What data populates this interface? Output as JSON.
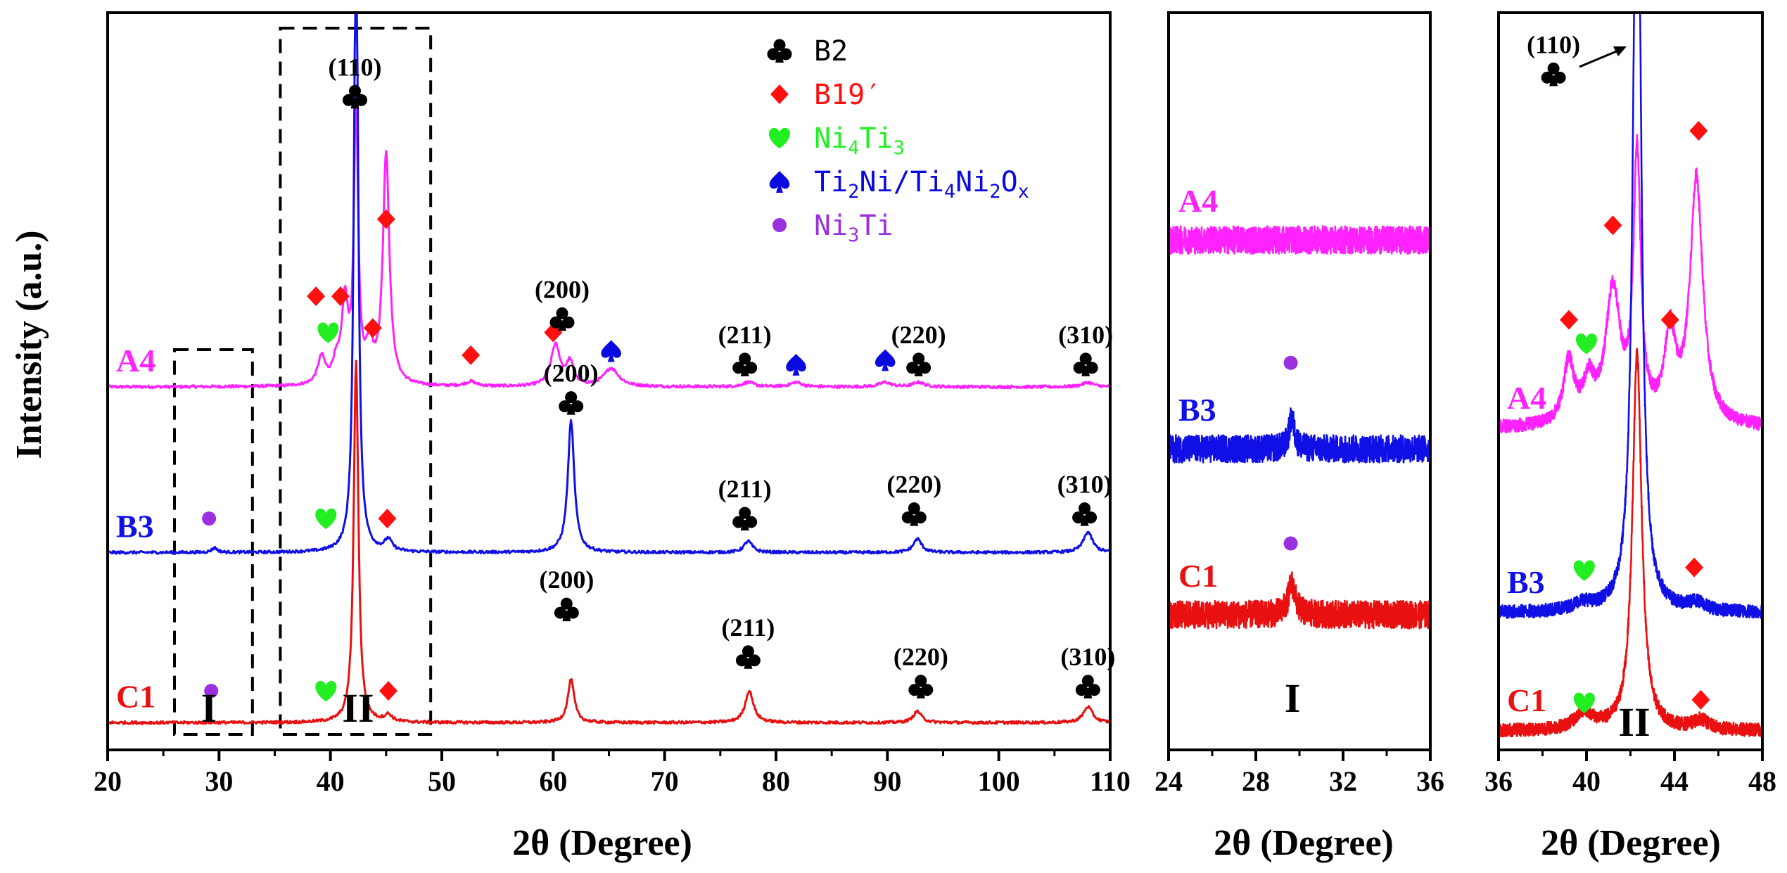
{
  "colors": {
    "A4": "#ff22ff",
    "B3": "#1010e6",
    "C1": "#e81010",
    "B2": "#000000",
    "B19p": "#ff1010",
    "Ni4Ti3": "#22ee22",
    "Ti2Ni": "#0a0ae0",
    "Ni3Ti": "#9a30e0"
  },
  "legend": [
    {
      "key": "B2",
      "symbol": "club",
      "label": "B2"
    },
    {
      "key": "B19p",
      "symbol": "diamond",
      "label": "B19′"
    },
    {
      "key": "Ni4Ti3",
      "symbol": "heart",
      "label": "Ni4Ti3",
      "rich": [
        [
          "Ni",
          0
        ],
        [
          "4",
          1
        ],
        [
          "Ti",
          0
        ],
        [
          "3",
          1
        ]
      ]
    },
    {
      "key": "Ti2Ni",
      "symbol": "spade",
      "label": "Ti2Ni/Ti4Ni2Ox",
      "rich": [
        [
          "Ti",
          0
        ],
        [
          "2",
          1
        ],
        [
          "Ni/Ti",
          0
        ],
        [
          "4",
          1
        ],
        [
          "Ni",
          0
        ],
        [
          "2",
          1
        ],
        [
          "O",
          0
        ],
        [
          "x",
          1
        ]
      ]
    },
    {
      "key": "Ni3Ti",
      "symbol": "dot",
      "label": "Ni3Ti",
      "rich": [
        [
          "Ni",
          0
        ],
        [
          "3",
          1
        ],
        [
          "Ti",
          0
        ]
      ]
    }
  ],
  "region_labels": {
    "I": "I",
    "II": "II"
  },
  "chart_data": [
    {
      "type": "line",
      "panel": "main",
      "xlabel": "2θ (Degree)",
      "ylabel": "Intensity (a.u.)",
      "xlim": [
        20,
        110
      ],
      "xticks": [
        20,
        30,
        40,
        50,
        60,
        70,
        80,
        90,
        100,
        110
      ],
      "series": [
        {
          "name": "A4",
          "baseline": 1.6,
          "peaks": [
            [
              39.2,
              0.12,
              0.4
            ],
            [
              40.5,
              0.08,
              0.4
            ],
            [
              41.3,
              0.35,
              0.35
            ],
            [
              42.3,
              1.25,
              0.22
            ],
            [
              43.5,
              0.15,
              0.4
            ],
            [
              45.0,
              1.02,
              0.35
            ],
            [
              52.6,
              0.02,
              0.6
            ],
            [
              60.2,
              0.18,
              0.5
            ],
            [
              61.5,
              0.1,
              0.4
            ],
            [
              65.2,
              0.08,
              0.8
            ],
            [
              77.5,
              0.02,
              0.6
            ],
            [
              81.8,
              0.02,
              0.6
            ],
            [
              89.8,
              0.02,
              0.6
            ],
            [
              92.8,
              0.02,
              0.6
            ],
            [
              108.0,
              0.02,
              0.6
            ]
          ]
        },
        {
          "name": "B3",
          "baseline": 0.87,
          "peaks": [
            [
              29.6,
              0.02,
              0.3
            ],
            [
              42.3,
              2.9,
              0.22
            ],
            [
              45.2,
              0.05,
              0.4
            ],
            [
              61.6,
              0.58,
              0.35
            ],
            [
              77.5,
              0.05,
              0.45
            ],
            [
              92.7,
              0.06,
              0.45
            ],
            [
              108.0,
              0.09,
              0.5
            ]
          ]
        },
        {
          "name": "C1",
          "baseline": 0.12,
          "peaks": [
            [
              42.3,
              1.6,
              0.25
            ],
            [
              45.2,
              0.03,
              0.4
            ],
            [
              61.6,
              0.19,
              0.35
            ],
            [
              77.6,
              0.14,
              0.45
            ],
            [
              92.7,
              0.05,
              0.45
            ],
            [
              108.0,
              0.07,
              0.5
            ]
          ]
        }
      ],
      "sample_labels": [
        "A4",
        "B3",
        "C1"
      ],
      "peak_annotations": [
        {
          "x": 42.2,
          "y": 2.88,
          "symbol": "club",
          "phase": "B2",
          "text": "(110)"
        },
        {
          "x": 38.7,
          "y": 2.0,
          "symbol": "diamond",
          "phase": "B19p"
        },
        {
          "x": 40.9,
          "y": 2.0,
          "symbol": "diamond",
          "phase": "B19p"
        },
        {
          "x": 43.8,
          "y": 1.86,
          "symbol": "diamond",
          "phase": "B19p"
        },
        {
          "x": 45.0,
          "y": 2.34,
          "symbol": "diamond",
          "phase": "B19p"
        },
        {
          "x": 39.8,
          "y": 1.84,
          "symbol": "heart",
          "phase": "Ni4Ti3"
        },
        {
          "x": 52.6,
          "y": 1.74,
          "symbol": "diamond",
          "phase": "B19p"
        },
        {
          "x": 60.0,
          "y": 1.84,
          "symbol": "diamond",
          "phase": "B19p"
        },
        {
          "x": 60.8,
          "y": 1.9,
          "symbol": "club",
          "phase": "B2",
          "text": "(200)"
        },
        {
          "x": 65.2,
          "y": 1.76,
          "symbol": "spade",
          "phase": "Ti2Ni"
        },
        {
          "x": 77.2,
          "y": 1.7,
          "symbol": "club",
          "phase": "B2",
          "text": "(211)"
        },
        {
          "x": 81.8,
          "y": 1.7,
          "symbol": "spade",
          "phase": "Ti2Ni"
        },
        {
          "x": 89.8,
          "y": 1.72,
          "symbol": "spade",
          "phase": "Ti2Ni"
        },
        {
          "x": 92.8,
          "y": 1.7,
          "symbol": "club",
          "phase": "B2",
          "text": "(220)"
        },
        {
          "x": 107.8,
          "y": 1.7,
          "symbol": "club",
          "phase": "B2",
          "text": "(310)"
        },
        {
          "x": 29.1,
          "y": 1.02,
          "symbol": "dot",
          "phase": "Ni3Ti"
        },
        {
          "x": 39.6,
          "y": 1.02,
          "symbol": "heart",
          "phase": "Ni4Ti3"
        },
        {
          "x": 45.1,
          "y": 1.02,
          "symbol": "diamond",
          "phase": "B19p"
        },
        {
          "x": 61.6,
          "y": 1.53,
          "symbol": "club",
          "phase": "B2",
          "text": "(200)"
        },
        {
          "x": 77.2,
          "y": 1.02,
          "symbol": "club",
          "phase": "B2",
          "text": "(211)"
        },
        {
          "x": 92.4,
          "y": 1.04,
          "symbol": "club",
          "phase": "B2",
          "text": "(220)"
        },
        {
          "x": 107.7,
          "y": 1.04,
          "symbol": "club",
          "phase": "B2",
          "text": "(310)"
        },
        {
          "x": 29.3,
          "y": 0.26,
          "symbol": "dot",
          "phase": "Ni3Ti"
        },
        {
          "x": 39.6,
          "y": 0.26,
          "symbol": "heart",
          "phase": "Ni4Ti3"
        },
        {
          "x": 45.2,
          "y": 0.26,
          "symbol": "diamond",
          "phase": "B19p"
        },
        {
          "x": 61.2,
          "y": 0.62,
          "symbol": "club",
          "phase": "B2",
          "text": "(200)"
        },
        {
          "x": 77.5,
          "y": 0.41,
          "symbol": "club",
          "phase": "B2",
          "text": "(211)"
        },
        {
          "x": 93.0,
          "y": 0.28,
          "symbol": "club",
          "phase": "B2",
          "text": "(220)"
        },
        {
          "x": 108.0,
          "y": 0.28,
          "symbol": "club",
          "phase": "B2",
          "text": "(310)"
        }
      ],
      "boxes": [
        {
          "label": "I",
          "x": [
            26,
            33
          ]
        },
        {
          "label": "II",
          "x": [
            35.5,
            49
          ]
        }
      ]
    },
    {
      "type": "line",
      "panel": "I",
      "xlabel": "2θ (Degree)",
      "xlim": [
        24,
        36
      ],
      "xticks": [
        24,
        28,
        32,
        36
      ],
      "series": [
        {
          "name": "A4",
          "baseline": 4.15,
          "peaks": []
        },
        {
          "name": "B3",
          "baseline": 2.45,
          "peaks": [
            [
              29.65,
              0.25,
              0.15
            ]
          ]
        },
        {
          "name": "C1",
          "baseline": 1.1,
          "peaks": [
            [
              29.65,
              0.25,
              0.2
            ]
          ]
        }
      ],
      "sample_labels": [
        "A4",
        "B3",
        "C1"
      ],
      "peak_annotations": [
        {
          "x": 29.6,
          "y": 3.15,
          "symbol": "dot",
          "phase": "Ni3Ti"
        },
        {
          "x": 29.6,
          "y": 1.68,
          "symbol": "dot",
          "phase": "Ni3Ti"
        }
      ]
    },
    {
      "type": "line",
      "panel": "II",
      "xlabel": "2θ (Degree)",
      "xlim": [
        36,
        48
      ],
      "xticks": [
        36,
        40,
        44,
        48
      ],
      "series": [
        {
          "name": "A4",
          "baseline": 3.4,
          "peaks": [
            [
              39.2,
              0.65,
              0.3
            ],
            [
              40.1,
              0.4,
              0.3
            ],
            [
              41.2,
              1.4,
              0.4
            ],
            [
              42.3,
              2.8,
              0.2
            ],
            [
              43.8,
              0.9,
              0.3
            ],
            [
              45.0,
              2.6,
              0.35
            ]
          ]
        },
        {
          "name": "B3",
          "baseline": 1.45,
          "peaks": [
            [
              39.8,
              0.08,
              0.5
            ],
            [
              42.3,
              9.5,
              0.2
            ],
            [
              45.0,
              0.08,
              0.45
            ]
          ]
        },
        {
          "name": "C1",
          "baseline": 0.2,
          "peaks": [
            [
              39.9,
              0.18,
              0.5
            ],
            [
              42.3,
              4.0,
              0.25
            ],
            [
              45.2,
              0.1,
              0.4
            ]
          ]
        }
      ],
      "sample_labels": [
        "A4",
        "B3",
        "C1"
      ],
      "peak_annotations": [
        {
          "x": 38.5,
          "y": 7.15,
          "symbol": "club",
          "phase": "B2",
          "text": "(110)"
        },
        {
          "x": 39.2,
          "y": 4.55,
          "symbol": "diamond",
          "phase": "B19p"
        },
        {
          "x": 40.0,
          "y": 4.3,
          "symbol": "heart",
          "phase": "Ni4Ti3"
        },
        {
          "x": 41.2,
          "y": 5.55,
          "symbol": "diamond",
          "phase": "B19p"
        },
        {
          "x": 43.8,
          "y": 4.55,
          "symbol": "diamond",
          "phase": "B19p"
        },
        {
          "x": 45.1,
          "y": 6.55,
          "symbol": "diamond",
          "phase": "B19p"
        },
        {
          "x": 39.9,
          "y": 1.9,
          "symbol": "heart",
          "phase": "Ni4Ti3"
        },
        {
          "x": 44.9,
          "y": 1.93,
          "symbol": "diamond",
          "phase": "B19p"
        },
        {
          "x": 39.9,
          "y": 0.5,
          "symbol": "heart",
          "phase": "Ni4Ti3"
        },
        {
          "x": 45.2,
          "y": 0.53,
          "symbol": "diamond",
          "phase": "B19p"
        }
      ]
    }
  ]
}
